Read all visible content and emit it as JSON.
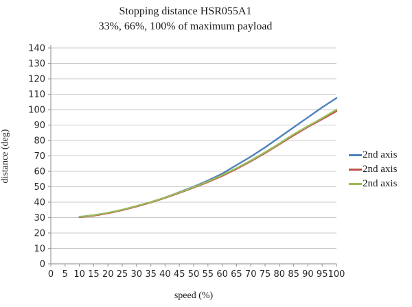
{
  "title": "Stopping distance HSR055A1",
  "subtitle": "33%, 66%, 100% of maximum payload",
  "chart_data": {
    "type": "line",
    "title": "Stopping distance HSR055A1",
    "subtitle": "33%, 66%, 100% of maximum payload",
    "xlabel": "speed (%)",
    "ylabel": "distance (deg)",
    "xlim": [
      0,
      100
    ],
    "ylim": [
      0,
      140
    ],
    "x_ticks": [
      0,
      5,
      10,
      15,
      20,
      25,
      30,
      35,
      40,
      45,
      50,
      55,
      60,
      65,
      70,
      75,
      80,
      85,
      90,
      95,
      100
    ],
    "y_ticks": [
      0,
      10,
      20,
      30,
      40,
      50,
      60,
      70,
      80,
      90,
      100,
      110,
      120,
      130,
      140
    ],
    "grid": "horizontal",
    "legend_position": "right",
    "x": [
      10,
      15,
      20,
      25,
      30,
      35,
      40,
      45,
      50,
      55,
      60,
      65,
      70,
      75,
      80,
      85,
      90,
      95,
      100
    ],
    "series": [
      {
        "name": "2nd axis",
        "color": "#4F81BD",
        "values": [
          30.5,
          31.5,
          33.0,
          35.0,
          37.5,
          40.0,
          43.0,
          46.5,
          50.0,
          54.0,
          58.5,
          64.0,
          69.5,
          75.5,
          82.0,
          88.5,
          95.0,
          101.5,
          107.5
        ]
      },
      {
        "name": "2nd axis",
        "color": "#C0504D",
        "values": [
          30.2,
          31.2,
          32.8,
          34.8,
          37.2,
          39.8,
          42.7,
          46.0,
          49.4,
          53.0,
          57.0,
          61.5,
          66.5,
          71.8,
          77.5,
          83.3,
          88.8,
          93.8,
          99.0
        ]
      },
      {
        "name": "2nd axis",
        "color": "#9BBB59",
        "values": [
          30.5,
          31.5,
          33.1,
          35.1,
          37.5,
          40.1,
          43.0,
          46.3,
          49.7,
          53.4,
          57.5,
          62.0,
          67.0,
          72.3,
          78.0,
          84.0,
          89.3,
          94.5,
          100.0
        ]
      }
    ]
  },
  "style_colors": {
    "gridline": "#c9c9c9",
    "axis": "#9e9e9e",
    "text": "#1a1a1a"
  }
}
